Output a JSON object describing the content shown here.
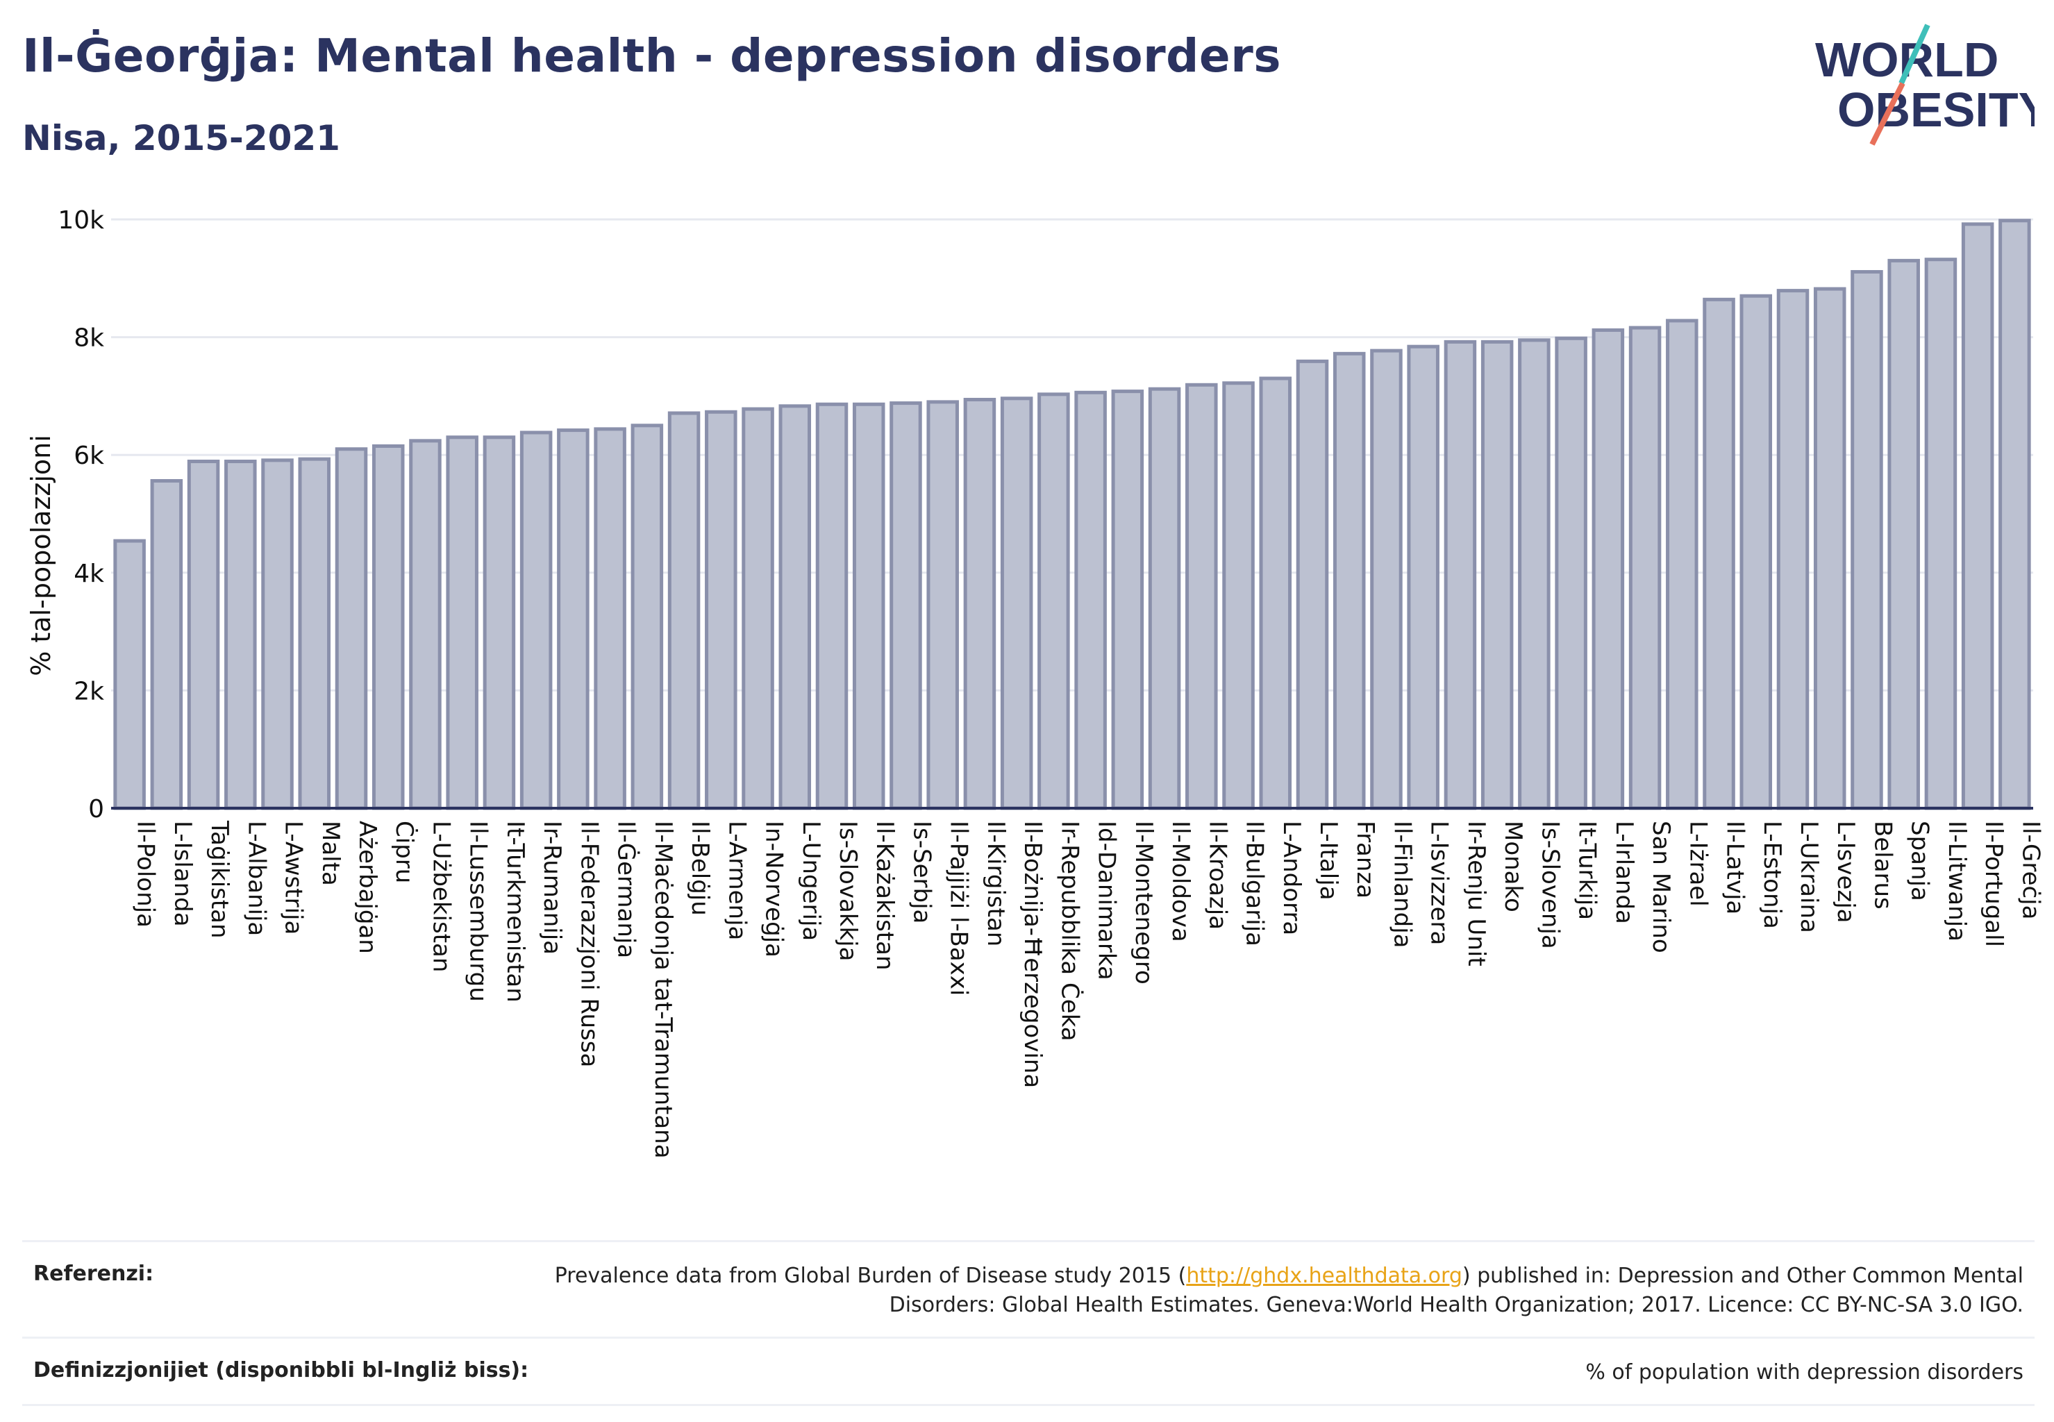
{
  "title": "Il-Ġeorġja: Mental health - depression disorders",
  "subtitle": "Nisa, 2015-2021",
  "logo": {
    "line1": "WORLD",
    "line2": "OBESITY"
  },
  "colors": {
    "bar_fill": "#bcc1d1",
    "bar_stroke": "#8a90ab",
    "text": "#2b3360",
    "grid": "#e6e8ef",
    "link": "#e8a317"
  },
  "chart_data": {
    "type": "bar",
    "ylabel": "% tal-popolazzjoni",
    "ylim": [
      0,
      10000
    ],
    "yticks": [
      0,
      2000,
      4000,
      6000,
      8000,
      10000
    ],
    "ytick_labels": [
      "0",
      "2k",
      "4k",
      "6k",
      "8k",
      "10k"
    ],
    "grid": true,
    "categories": [
      "Il-Polonja",
      "L-Islanda",
      "Taġikistan",
      "L-Albanija",
      "L-Awstrija",
      "Malta",
      "Ażerbajġan",
      "Ċipru",
      "L-Użbekistan",
      "Il-Lussemburgu",
      "It-Turkmenistan",
      "Ir-Rumanija",
      "Il-Federazzjoni Russa",
      "Il-Ġermanja",
      "Il-Maċedonja tat-Tramuntana",
      "Il-Belġju",
      "L-Armenja",
      "In-Norveġja",
      "L-Ungerija",
      "Is-Slovakkja",
      "Il-Każakistan",
      "Is-Serbja",
      "Il-Pajjiżi l-Baxxi",
      "Il-Kirgistan",
      "Il-Bożnija-Ħerzegovina",
      "Ir-Repubblika Ċeka",
      "Id-Danimarka",
      "Il-Montenegro",
      "Il-Moldova",
      "Il-Kroazja",
      "Il-Bulgarija",
      "L-Andorra",
      "L-Italja",
      "Franza",
      "Il-Finlandja",
      "L-Isvizzera",
      "Ir-Renju Unit",
      "Monako",
      "Is-Slovenja",
      "It-Turkija",
      "L-Irlanda",
      "San Marino",
      "L-Iżrael",
      "Il-Latvja",
      "L-Estonja",
      "L-Ukraina",
      "L-Isvezja",
      "Belarus",
      "Spanja",
      "Il-Litwanja",
      "Il-Portugall",
      "Il-Greċja"
    ],
    "values": [
      4540,
      5560,
      5890,
      5890,
      5910,
      5930,
      6100,
      6150,
      6240,
      6300,
      6300,
      6380,
      6420,
      6440,
      6500,
      6710,
      6730,
      6780,
      6830,
      6860,
      6860,
      6880,
      6900,
      6940,
      6960,
      7030,
      7060,
      7080,
      7120,
      7190,
      7220,
      7300,
      7590,
      7720,
      7770,
      7840,
      7920,
      7920,
      7950,
      7980,
      8120,
      8160,
      8280,
      8640,
      8700,
      8790,
      8820,
      9110,
      9300,
      9320,
      9920,
      9980
    ]
  },
  "footer": {
    "references_label": "Referenzi:",
    "references_pre": "Prevalence data from Global Burden of Disease study 2015 (",
    "references_link": "http://ghdx.healthdata.org",
    "references_post": ") published in: Depression and Other Common Mental Disorders: Global Health Estimates. Geneva:World Health Organization; 2017. Licence: CC BY-NC-SA 3.0 IGO.",
    "definitions_label": "Definizzjonijiet (disponibbli bl-Ingliż biss):",
    "definitions_value": "% of population with depression disorders"
  }
}
